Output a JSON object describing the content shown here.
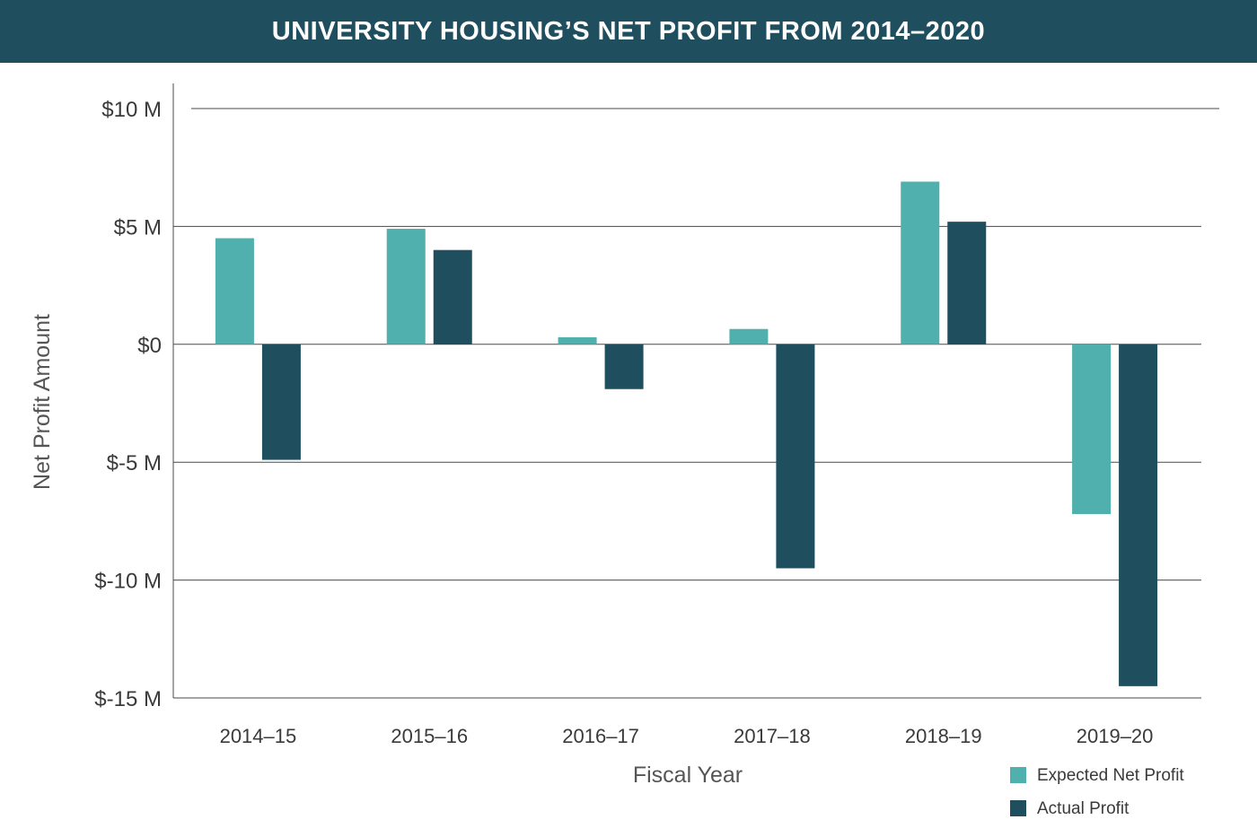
{
  "title": "UNIVERSITY HOUSING’S NET PROFIT FROM 2014–2020",
  "colors": {
    "header_bg": "#1f4e5f",
    "expected": "#4fb0ae",
    "actual": "#1f4e5f",
    "grid": "#4a4a4a"
  },
  "chart_data": {
    "type": "bar",
    "title": "UNIVERSITY HOUSING’S NET PROFIT FROM 2014–2020",
    "xlabel": "Fiscal Year",
    "ylabel": "Net Profit Amount",
    "categories": [
      "2014–15",
      "2015–16",
      "2016–17",
      "2017–18",
      "2018–19",
      "2019–20"
    ],
    "series": [
      {
        "name": "Expected Net Profit",
        "color": "#4fb0ae",
        "values": [
          4.5,
          4.9,
          0.3,
          0.65,
          6.9,
          -7.2
        ]
      },
      {
        "name": "Actual Profit",
        "color": "#1f4e5f",
        "values": [
          -4.9,
          4.0,
          -1.9,
          -9.5,
          5.2,
          -14.5
        ]
      }
    ],
    "ylim": [
      -15,
      10
    ],
    "yticks": [
      10,
      5,
      0,
      -5,
      -10,
      -15
    ],
    "ytick_labels": [
      "$10 M",
      "$5 M",
      "$0",
      "$-5 M",
      "$-10 M",
      "$-15 M"
    ],
    "units": "millions of dollars",
    "grid": true,
    "legend_position": "bottom-right"
  }
}
